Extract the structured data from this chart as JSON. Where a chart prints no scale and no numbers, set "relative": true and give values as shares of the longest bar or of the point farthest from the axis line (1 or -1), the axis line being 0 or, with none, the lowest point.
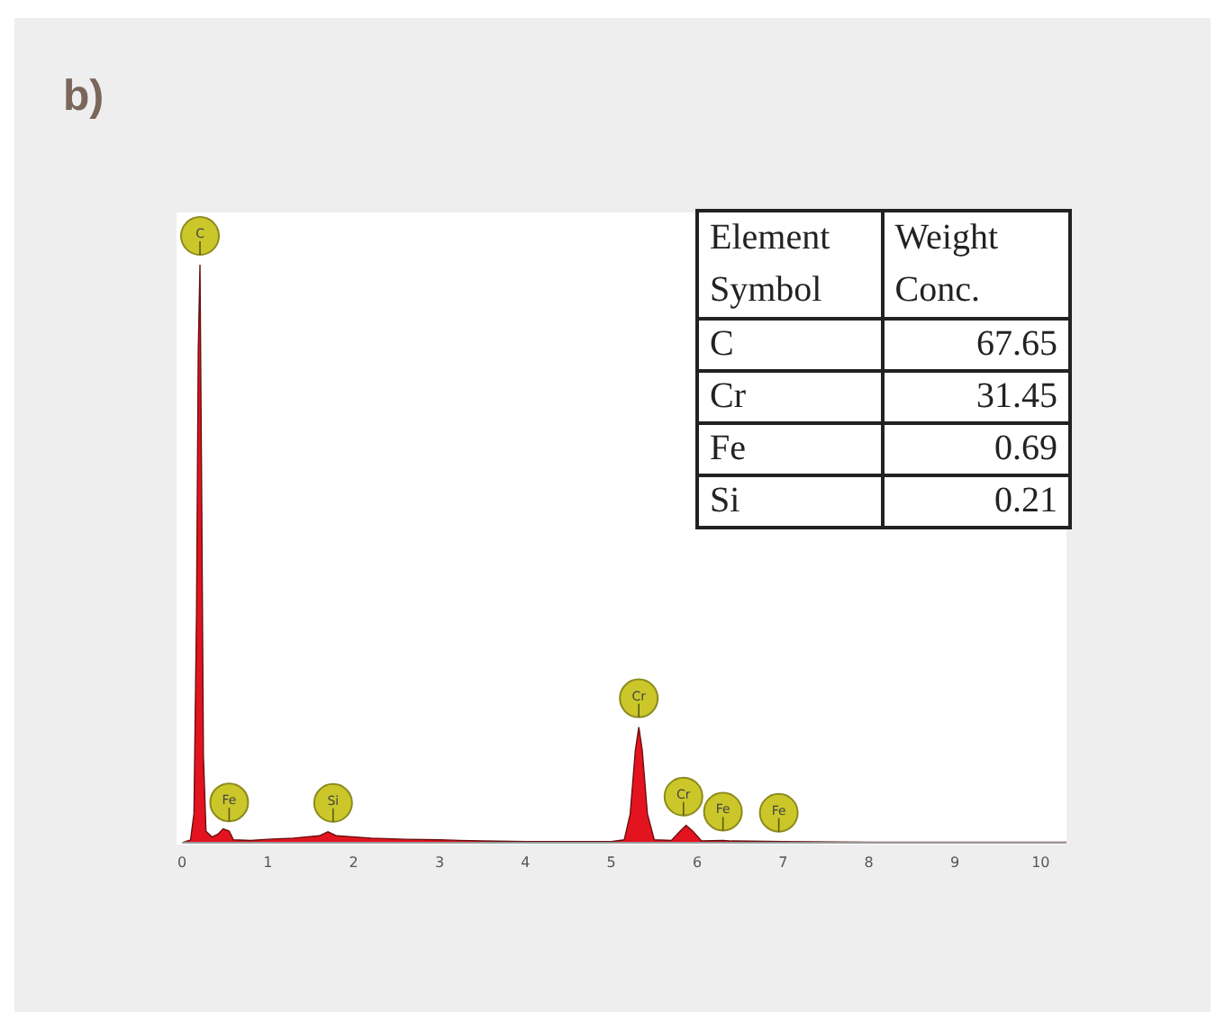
{
  "chart_data": {
    "type": "area",
    "title": "b)",
    "relative": true,
    "color": "#e3141f",
    "x": [
      0,
      0.1,
      0.14,
      0.17,
      0.19,
      0.21,
      0.23,
      0.25,
      0.28,
      0.35,
      0.42,
      0.48,
      0.55,
      0.6,
      0.8,
      1.0,
      1.3,
      1.6,
      1.7,
      1.8,
      2.2,
      2.6,
      3.0,
      3.5,
      4.0,
      4.5,
      5.0,
      5.15,
      5.22,
      5.28,
      5.32,
      5.36,
      5.42,
      5.5,
      5.7,
      5.8,
      5.87,
      5.95,
      6.05,
      6.3,
      6.4,
      7,
      8,
      9,
      10,
      10.3
    ],
    "values": [
      0,
      0.005,
      0.05,
      0.4,
      0.85,
      1,
      0.6,
      0.15,
      0.02,
      0.01,
      0.015,
      0.024,
      0.02,
      0.005,
      0.004,
      0.006,
      0.008,
      0.012,
      0.019,
      0.012,
      0.008,
      0.006,
      0.005,
      0.003,
      0.002,
      0.002,
      0.002,
      0.005,
      0.05,
      0.16,
      0.2,
      0.16,
      0.05,
      0.005,
      0.004,
      0.02,
      0.03,
      0.02,
      0.003,
      0.004,
      0.003,
      0.002,
      0.001,
      0.001,
      0.001,
      0.001
    ],
    "xlim": [
      0,
      10.3
    ],
    "xticks": [
      0,
      1,
      2,
      3,
      4,
      5,
      6,
      7,
      8,
      9,
      10
    ],
    "grid": false,
    "legend": false,
    "annotations": [
      {
        "text": "C",
        "x": 0.21,
        "y": 1
      },
      {
        "text": "Fe",
        "x": 0.55,
        "y": 0.02
      },
      {
        "text": "Si",
        "x": 1.76,
        "y": 0.019
      },
      {
        "text": "Cr",
        "x": 5.32,
        "y": 0.2
      },
      {
        "text": "Cr",
        "x": 5.84,
        "y": 0.03
      },
      {
        "text": "Fe",
        "x": 6.3,
        "y": 0.004
      },
      {
        "text": "Fe",
        "x": 6.95,
        "y": 0.002
      },
      "Element Symbol",
      "Weight Conc.",
      "C",
      "67.65",
      "Cr",
      "31.45",
      "Fe",
      "0.69",
      "Si",
      "0.21"
    ]
  }
}
